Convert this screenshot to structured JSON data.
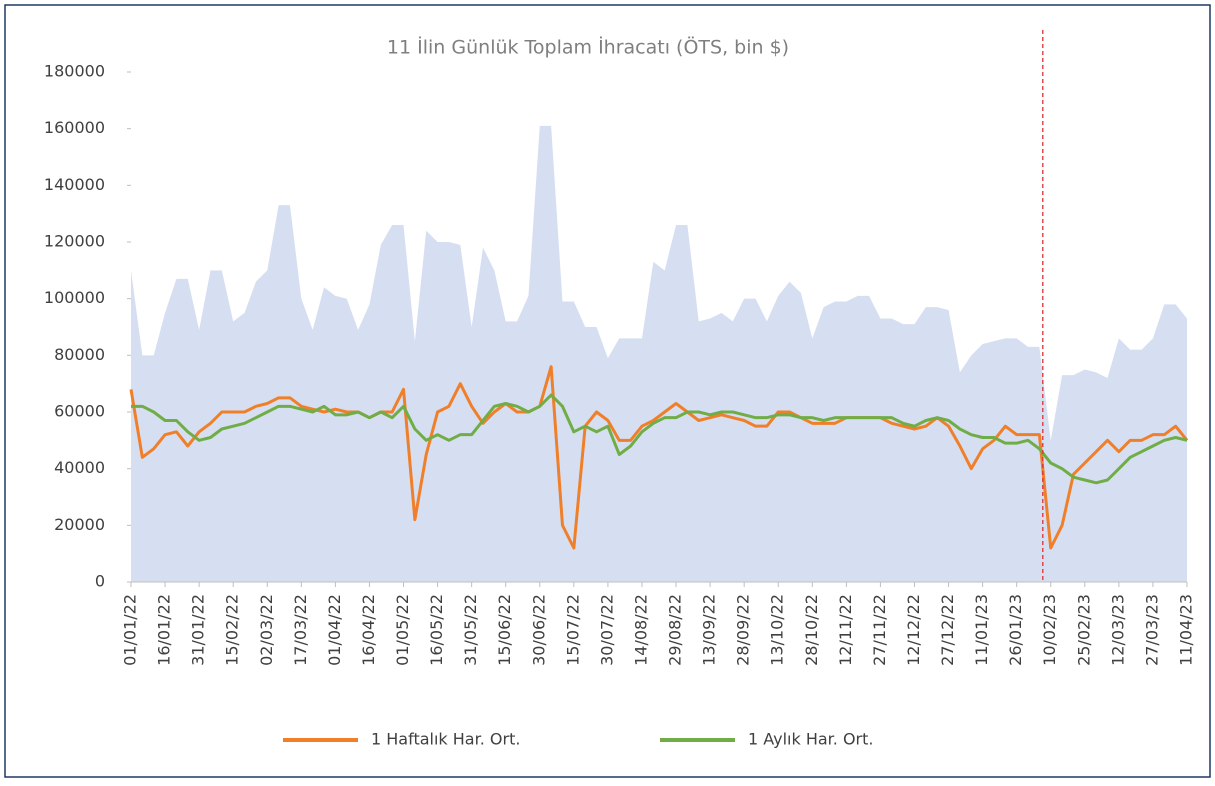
{
  "chart_data": {
    "type": "line",
    "title": "11 İlin Günlük Toplam İhracatı (ÖTS, bin $)",
    "categories": [
      "01/01/22",
      null,
      null,
      "16/01/22",
      null,
      null,
      "31/01/22",
      null,
      null,
      "15/02/22",
      null,
      null,
      "02/03/22",
      null,
      null,
      "17/03/22",
      null,
      null,
      "01/04/22",
      null,
      null,
      "16/04/22",
      null,
      null,
      "01/05/22",
      null,
      null,
      "16/05/22",
      null,
      null,
      "31/05/22",
      null,
      null,
      "15/06/22",
      null,
      null,
      "30/06/22",
      null,
      null,
      "15/07/22",
      null,
      null,
      "30/07/22",
      null,
      null,
      "14/08/22",
      null,
      null,
      "29/08/22",
      null,
      null,
      "13/09/22",
      null,
      null,
      "28/09/22",
      null,
      null,
      "13/10/22",
      null,
      null,
      "28/10/22",
      null,
      null,
      "12/11/22",
      null,
      null,
      "27/11/22",
      null,
      null,
      "12/12/22",
      null,
      null,
      "27/12/22",
      null,
      null,
      "11/01/23",
      null,
      null,
      "26/01/23",
      null,
      null,
      "10/02/23",
      null,
      null,
      "25/02/23",
      null,
      null,
      "12/03/23",
      null,
      null,
      "27/03/23",
      null,
      null,
      "11/04/23"
    ],
    "area": {
      "color": "#d6dff2",
      "values": [
        110000,
        80000,
        80000,
        95000,
        107000,
        107000,
        89000,
        110000,
        110000,
        92000,
        95000,
        106000,
        110000,
        133000,
        133000,
        100000,
        89000,
        104000,
        101000,
        100000,
        89000,
        98000,
        119000,
        126000,
        126000,
        85000,
        124000,
        120000,
        120000,
        119000,
        90000,
        118000,
        110000,
        92000,
        92000,
        101000,
        161000,
        161000,
        99000,
        99000,
        90000,
        90000,
        79000,
        86000,
        86000,
        86000,
        113000,
        110000,
        126000,
        126000,
        92000,
        93000,
        95000,
        92000,
        100000,
        100000,
        92000,
        101000,
        106000,
        102000,
        86000,
        97000,
        99000,
        99000,
        101000,
        101000,
        93000,
        93000,
        91000,
        91000,
        97000,
        97000,
        96000,
        74000,
        80000,
        84000,
        85000,
        86000,
        86000,
        83000,
        83000,
        50000,
        73000,
        73000,
        75000,
        74000,
        72000,
        86000,
        82000,
        82000,
        86000,
        98000,
        98000,
        93000
      ]
    },
    "series": [
      {
        "name": "1 Haftalık Har. Ort.",
        "color": "#f07f2a",
        "values": [
          68000,
          44000,
          47000,
          52000,
          53000,
          48000,
          53000,
          56000,
          60000,
          60000,
          60000,
          62000,
          63000,
          65000,
          65000,
          62000,
          61000,
          60000,
          61000,
          60000,
          60000,
          58000,
          60000,
          60000,
          68000,
          22000,
          45000,
          60000,
          62000,
          70000,
          62000,
          56000,
          60000,
          63000,
          60000,
          60000,
          62000,
          76000,
          20000,
          12000,
          55000,
          60000,
          57000,
          50000,
          50000,
          55000,
          57000,
          60000,
          63000,
          60000,
          57000,
          58000,
          59000,
          58000,
          57000,
          55000,
          55000,
          60000,
          60000,
          58000,
          56000,
          56000,
          56000,
          58000,
          58000,
          58000,
          58000,
          56000,
          55000,
          54000,
          55000,
          58000,
          55000,
          48000,
          40000,
          47000,
          50000,
          55000,
          52000,
          52000,
          52000,
          12000,
          20000,
          38000,
          42000,
          46000,
          50000,
          46000,
          50000,
          50000,
          52000,
          52000,
          55000,
          50000
        ]
      },
      {
        "name": "1 Aylık Har. Ort.",
        "color": "#70ad47",
        "values": [
          62000,
          62000,
          60000,
          57000,
          57000,
          53000,
          50000,
          51000,
          54000,
          55000,
          56000,
          58000,
          60000,
          62000,
          62000,
          61000,
          60000,
          62000,
          59000,
          59000,
          60000,
          58000,
          60000,
          58000,
          62000,
          54000,
          50000,
          52000,
          50000,
          52000,
          52000,
          57000,
          62000,
          63000,
          62000,
          60000,
          62000,
          66000,
          62000,
          53000,
          55000,
          53000,
          55000,
          45000,
          48000,
          53000,
          56000,
          58000,
          58000,
          60000,
          60000,
          59000,
          60000,
          60000,
          59000,
          58000,
          58000,
          59000,
          59000,
          58000,
          58000,
          57000,
          58000,
          58000,
          58000,
          58000,
          58000,
          58000,
          56000,
          55000,
          57000,
          58000,
          57000,
          54000,
          52000,
          51000,
          51000,
          49000,
          49000,
          50000,
          47000,
          42000,
          40000,
          37000,
          36000,
          35000,
          36000,
          40000,
          44000,
          46000,
          48000,
          50000,
          51000,
          50000
        ]
      }
    ],
    "reference_line": {
      "at": 80.3,
      "color": "#e03030"
    },
    "ylim": [
      0,
      180000
    ],
    "yticks": [
      0,
      20000,
      40000,
      60000,
      80000,
      100000,
      120000,
      140000,
      160000,
      180000
    ]
  }
}
